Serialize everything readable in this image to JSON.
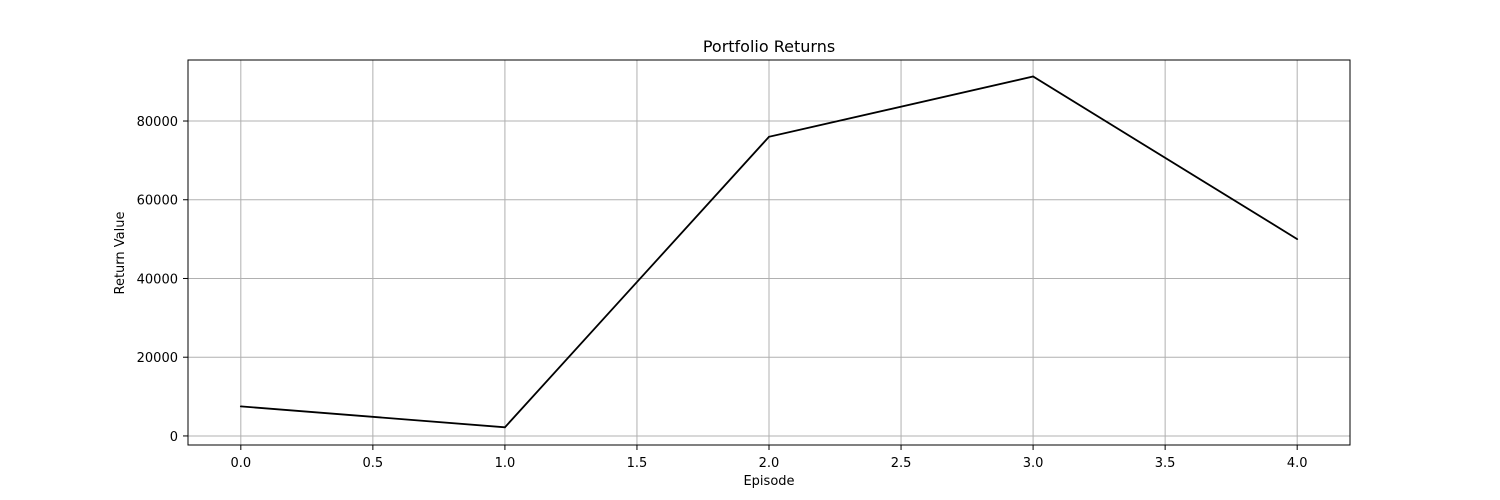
{
  "chart_data": {
    "type": "line",
    "title": "Portfolio Returns",
    "xlabel": "Episode",
    "ylabel": "Return Value",
    "xlim": [
      -0.2,
      4.2
    ],
    "ylim": [
      -2300,
      95500
    ],
    "xticks": [
      0.0,
      0.5,
      1.0,
      1.5,
      2.0,
      2.5,
      3.0,
      3.5,
      4.0
    ],
    "xtick_labels": [
      "0.0",
      "0.5",
      "1.0",
      "1.5",
      "2.0",
      "2.5",
      "3.0",
      "3.5",
      "4.0"
    ],
    "yticks": [
      0,
      20000,
      40000,
      60000,
      80000
    ],
    "ytick_labels": [
      "0",
      "20000",
      "40000",
      "60000",
      "80000"
    ],
    "grid": true,
    "series": [
      {
        "x": [
          0,
          1,
          2,
          3,
          4
        ],
        "values": [
          7500,
          2200,
          76000,
          91300,
          50000
        ],
        "color": "#000000"
      }
    ]
  }
}
